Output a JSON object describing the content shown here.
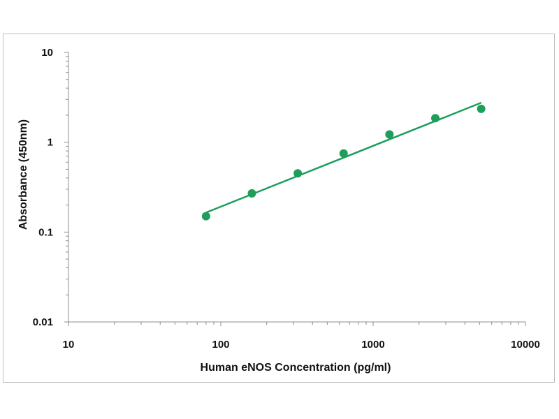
{
  "chart_data": {
    "type": "scatter",
    "title": "",
    "xlabel": "Human eNOS Concentration (pg/ml)",
    "ylabel": "Absorbance (450nm)",
    "x_scale": "log",
    "y_scale": "log",
    "xlim": [
      10,
      10000
    ],
    "ylim": [
      0.01,
      10
    ],
    "x_ticks": [
      "10",
      "100",
      "1000",
      "10000"
    ],
    "y_ticks": [
      "10",
      "1",
      "0.1",
      "0.01"
    ],
    "grid": false,
    "legend": "none",
    "series": [
      {
        "marker_color": "#1e9e5a",
        "points": [
          {
            "x": 80,
            "y": 0.15
          },
          {
            "x": 160,
            "y": 0.27
          },
          {
            "x": 320,
            "y": 0.45
          },
          {
            "x": 640,
            "y": 0.75
          },
          {
            "x": 1280,
            "y": 1.22
          },
          {
            "x": 2560,
            "y": 1.85
          },
          {
            "x": 5120,
            "y": 2.35
          }
        ],
        "fit_line": {
          "x": [
            80,
            5120
          ],
          "y": [
            0.165,
            2.75
          ]
        }
      }
    ]
  }
}
